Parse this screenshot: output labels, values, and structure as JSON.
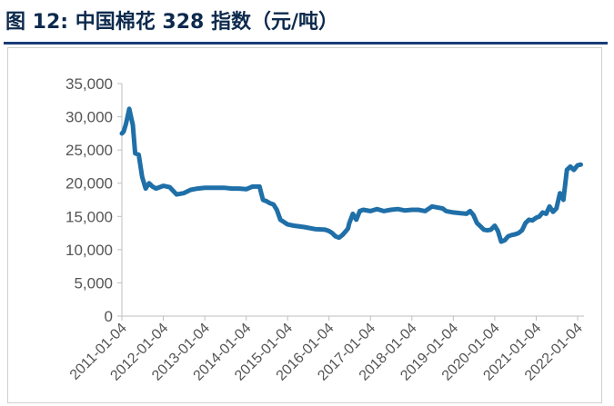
{
  "figure": {
    "label": "图 12:",
    "title": "中国棉花 328 指数（元/吨）"
  },
  "colors": {
    "line": "#1f6fa8",
    "axis": "#bfbfbf",
    "title": "#0d2a4d",
    "rule": "#1a3c78"
  },
  "chart_data": {
    "type": "line",
    "title": "中国棉花 328 指数（元/吨）",
    "xlabel": "",
    "ylabel": "",
    "ylim": [
      0,
      35000
    ],
    "y_ticks": [
      "0",
      "5,000",
      "10,000",
      "15,000",
      "20,000",
      "25,000",
      "30,000",
      "35,000"
    ],
    "x_ticks": [
      "2011-01-04",
      "2012-01-04",
      "2013-01-04",
      "2014-01-04",
      "2015-01-04",
      "2016-01-04",
      "2017-01-04",
      "2018-01-04",
      "2019-01-04",
      "2020-01-04",
      "2021-01-04",
      "2022-01-04"
    ],
    "grid": false,
    "legend": "none",
    "series": [
      {
        "name": "",
        "x": [
          "2011-01-04",
          "2011-01-20",
          "2011-02-10",
          "2011-03-01",
          "2011-03-10",
          "2011-04-01",
          "2011-04-10",
          "2011-05-01",
          "2011-06-01",
          "2011-07-01",
          "2011-08-01",
          "2011-09-01",
          "2011-10-01",
          "2011-11-01",
          "2012-01-04",
          "2012-03-01",
          "2012-05-01",
          "2012-07-01",
          "2012-09-01",
          "2012-11-01",
          "2013-01-04",
          "2013-03-01",
          "2013-05-01",
          "2013-07-01",
          "2013-09-01",
          "2013-11-01",
          "2014-01-04",
          "2014-03-01",
          "2014-05-01",
          "2014-06-01",
          "2014-07-01",
          "2014-08-01",
          "2014-09-01",
          "2014-10-01",
          "2014-11-01",
          "2015-01-04",
          "2015-03-01",
          "2015-06-01",
          "2015-09-01",
          "2015-12-01",
          "2016-01-04",
          "2016-02-01",
          "2016-03-01",
          "2016-04-01",
          "2016-05-01",
          "2016-06-01",
          "2016-06-20",
          "2016-07-01",
          "2016-08-01",
          "2016-09-01",
          "2016-10-01",
          "2016-11-01",
          "2017-01-04",
          "2017-03-01",
          "2017-05-01",
          "2017-07-01",
          "2017-09-01",
          "2017-11-01",
          "2018-01-04",
          "2018-03-01",
          "2018-05-01",
          "2018-07-01",
          "2018-09-01",
          "2018-10-01",
          "2018-11-01",
          "2019-01-04",
          "2019-03-01",
          "2019-05-01",
          "2019-06-01",
          "2019-07-01",
          "2019-08-01",
          "2019-09-01",
          "2019-10-01",
          "2019-11-01",
          "2019-12-01",
          "2020-01-04",
          "2020-02-01",
          "2020-03-01",
          "2020-04-01",
          "2020-05-01",
          "2020-06-01",
          "2020-07-01",
          "2020-08-01",
          "2020-09-01",
          "2020-10-01",
          "2020-11-01",
          "2020-12-01",
          "2021-01-04",
          "2021-02-01",
          "2021-03-01",
          "2021-04-01",
          "2021-05-01",
          "2021-06-01",
          "2021-07-01",
          "2021-08-01",
          "2021-09-01",
          "2021-10-01",
          "2021-11-01",
          "2021-12-01",
          "2022-01-04",
          "2022-02-01"
        ],
        "values": [
          27500,
          27800,
          29000,
          30500,
          31200,
          29500,
          28800,
          24500,
          24300,
          21000,
          19200,
          20000,
          19500,
          19200,
          19600,
          19400,
          18300,
          18500,
          19000,
          19200,
          19300,
          19300,
          19300,
          19300,
          19200,
          19200,
          19100,
          19500,
          19500,
          17500,
          17300,
          17000,
          16800,
          16000,
          14500,
          13800,
          13600,
          13400,
          13100,
          13000,
          12800,
          12500,
          12000,
          11800,
          12200,
          12800,
          13200,
          14000,
          15400,
          14500,
          15800,
          16000,
          15800,
          16100,
          15800,
          16000,
          16100,
          15900,
          16000,
          16000,
          15800,
          16500,
          16300,
          16200,
          15800,
          15600,
          15500,
          15400,
          15800,
          15200,
          14000,
          13500,
          13000,
          12900,
          13000,
          13600,
          12800,
          11200,
          11400,
          12000,
          12200,
          12300,
          12500,
          12900,
          14000,
          14500,
          14400,
          14800,
          15000,
          15600,
          15400,
          16500,
          15700,
          16200,
          18500,
          17500,
          22000,
          22500,
          22000,
          22700,
          22800
        ]
      }
    ]
  }
}
